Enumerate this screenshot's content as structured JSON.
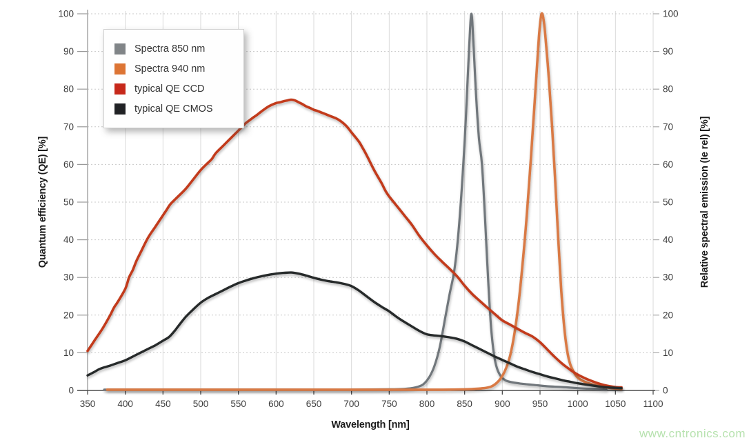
{
  "legend": {
    "items": [
      {
        "label": "Spectra 850 nm",
        "color": "#808487"
      },
      {
        "label": "Spectra 940 nm",
        "color": "#dc7434"
      },
      {
        "label": "typical QE CCD",
        "color": "#c6281a"
      },
      {
        "label": "typical QE CMOS",
        "color": "#202124"
      }
    ]
  },
  "axes": {
    "x_label": "Wavelength [nm]",
    "y_left_label": "Quantum efficiency (QE) [%]",
    "y_right_label": "Relative spectral emission (Ie rel) [%]"
  },
  "watermark": {
    "text": "www.cntronics.com",
    "color": "#b7e2af"
  },
  "chart_data": {
    "type": "line",
    "title": "",
    "xlabel": "Wavelength [nm]",
    "ylabel": "Quantum efficiency (QE) [%]",
    "ylabel_right": "Relative spectral emission (Ie rel) [%]",
    "xlim": [
      350,
      1100
    ],
    "ylim": [
      0,
      100
    ],
    "x_ticks": [
      350,
      400,
      450,
      500,
      550,
      600,
      650,
      700,
      750,
      800,
      850,
      900,
      950,
      1000,
      1050,
      1100
    ],
    "y_ticks": [
      0,
      10,
      20,
      30,
      40,
      50,
      60,
      70,
      80,
      90,
      100
    ],
    "grid": {
      "vertical": "solid",
      "horizontal": "dotted"
    },
    "legend_position": "top-left",
    "series": [
      {
        "name": "Spectra 850 nm",
        "color": "#71777b",
        "width": 3.2,
        "points": [
          [
            372,
            0.2
          ],
          [
            600,
            0.2
          ],
          [
            700,
            0.2
          ],
          [
            750,
            0.3
          ],
          [
            770,
            0.4
          ],
          [
            785,
            0.8
          ],
          [
            795,
            1.6
          ],
          [
            803,
            3.5
          ],
          [
            810,
            6.5
          ],
          [
            817,
            11.5
          ],
          [
            824,
            19
          ],
          [
            830,
            25.5
          ],
          [
            836,
            31.5
          ],
          [
            841,
            40
          ],
          [
            846,
            53
          ],
          [
            850,
            66
          ],
          [
            853,
            78
          ],
          [
            856,
            91
          ],
          [
            859,
            100
          ],
          [
            862,
            91
          ],
          [
            865,
            79
          ],
          [
            869,
            67
          ],
          [
            873,
            60
          ],
          [
            877,
            46
          ],
          [
            881,
            30
          ],
          [
            885,
            17
          ],
          [
            889,
            9.5
          ],
          [
            893,
            5.8
          ],
          [
            898,
            3.8
          ],
          [
            904,
            2.7
          ],
          [
            912,
            2.2
          ],
          [
            925,
            1.8
          ],
          [
            940,
            1.5
          ],
          [
            960,
            1.1
          ],
          [
            980,
            0.9
          ],
          [
            1000,
            0.6
          ],
          [
            1020,
            0.4
          ],
          [
            1038,
            0.2
          ]
        ]
      },
      {
        "name": "Spectra 940 nm",
        "color": "#d97a45",
        "width": 3.6,
        "points": [
          [
            376,
            0.2
          ],
          [
            600,
            0.2
          ],
          [
            750,
            0.2
          ],
          [
            820,
            0.2
          ],
          [
            850,
            0.3
          ],
          [
            870,
            0.5
          ],
          [
            885,
            1
          ],
          [
            895,
            2.5
          ],
          [
            903,
            5
          ],
          [
            910,
            9
          ],
          [
            916,
            15
          ],
          [
            922,
            24
          ],
          [
            928,
            36
          ],
          [
            933,
            48
          ],
          [
            938,
            62
          ],
          [
            942,
            74
          ],
          [
            946,
            86
          ],
          [
            949,
            95
          ],
          [
            952,
            100
          ],
          [
            955,
            98
          ],
          [
            958,
            92
          ],
          [
            962,
            82
          ],
          [
            966,
            70
          ],
          [
            970,
            56
          ],
          [
            974,
            41
          ],
          [
            978,
            27
          ],
          [
            982,
            17
          ],
          [
            986,
            10.5
          ],
          [
            990,
            7
          ],
          [
            995,
            4.8
          ],
          [
            1000,
            3.4
          ],
          [
            1008,
            2.4
          ],
          [
            1016,
            1.8
          ],
          [
            1025,
            1.3
          ],
          [
            1035,
            0.9
          ],
          [
            1045,
            0.6
          ],
          [
            1058,
            0.4
          ]
        ]
      },
      {
        "name": "typical QE CCD",
        "color": "#c23a1b",
        "width": 3.6,
        "points": [
          [
            350,
            10.5
          ],
          [
            360,
            13.5
          ],
          [
            370,
            16.5
          ],
          [
            380,
            20
          ],
          [
            385,
            22
          ],
          [
            390,
            23.5
          ],
          [
            400,
            27
          ],
          [
            405,
            30
          ],
          [
            410,
            32
          ],
          [
            415,
            34.5
          ],
          [
            420,
            36.5
          ],
          [
            430,
            40.5
          ],
          [
            440,
            43.5
          ],
          [
            450,
            46.5
          ],
          [
            455,
            48
          ],
          [
            460,
            49.5
          ],
          [
            470,
            51.5
          ],
          [
            480,
            53.5
          ],
          [
            490,
            56
          ],
          [
            500,
            58.5
          ],
          [
            510,
            60.5
          ],
          [
            515,
            61.5
          ],
          [
            520,
            63
          ],
          [
            530,
            65
          ],
          [
            540,
            67
          ],
          [
            550,
            69
          ],
          [
            555,
            70
          ],
          [
            560,
            71
          ],
          [
            570,
            72.5
          ],
          [
            575,
            73.2
          ],
          [
            580,
            74
          ],
          [
            590,
            75.4
          ],
          [
            600,
            76.3
          ],
          [
            605,
            76.5
          ],
          [
            610,
            76.8
          ],
          [
            615,
            77
          ],
          [
            620,
            77.2
          ],
          [
            625,
            77
          ],
          [
            630,
            76.5
          ],
          [
            635,
            76
          ],
          [
            640,
            75.4
          ],
          [
            645,
            75
          ],
          [
            650,
            74.5
          ],
          [
            655,
            74.2
          ],
          [
            660,
            73.8
          ],
          [
            670,
            73
          ],
          [
            675,
            72.6
          ],
          [
            680,
            72.2
          ],
          [
            685,
            71.6
          ],
          [
            690,
            70.8
          ],
          [
            695,
            69.8
          ],
          [
            700,
            68.5
          ],
          [
            710,
            66
          ],
          [
            715,
            64.3
          ],
          [
            720,
            62.5
          ],
          [
            730,
            58.5
          ],
          [
            740,
            55
          ],
          [
            745,
            53
          ],
          [
            750,
            51.5
          ],
          [
            760,
            49
          ],
          [
            770,
            46.5
          ],
          [
            780,
            44
          ],
          [
            790,
            41
          ],
          [
            800,
            38.5
          ],
          [
            810,
            36.2
          ],
          [
            820,
            34.2
          ],
          [
            830,
            32.3
          ],
          [
            840,
            30.3
          ],
          [
            850,
            27.8
          ],
          [
            860,
            25.6
          ],
          [
            870,
            23.8
          ],
          [
            880,
            22
          ],
          [
            890,
            20.3
          ],
          [
            900,
            18.6
          ],
          [
            910,
            17.5
          ],
          [
            920,
            16.4
          ],
          [
            930,
            15.3
          ],
          [
            940,
            14.3
          ],
          [
            950,
            12.8
          ],
          [
            960,
            10.8
          ],
          [
            970,
            8.8
          ],
          [
            980,
            7
          ],
          [
            990,
            5.5
          ],
          [
            1000,
            4.2
          ],
          [
            1010,
            3.2
          ],
          [
            1020,
            2.4
          ],
          [
            1030,
            1.7
          ],
          [
            1040,
            1.2
          ],
          [
            1050,
            0.9
          ],
          [
            1058,
            0.8
          ]
        ]
      },
      {
        "name": "typical QE CMOS",
        "color": "#28292b",
        "width": 3.4,
        "points": [
          [
            350,
            4
          ],
          [
            358,
            4.8
          ],
          [
            365,
            5.6
          ],
          [
            370,
            6
          ],
          [
            380,
            6.6
          ],
          [
            390,
            7.3
          ],
          [
            400,
            8
          ],
          [
            410,
            9
          ],
          [
            420,
            10
          ],
          [
            430,
            11
          ],
          [
            440,
            12
          ],
          [
            450,
            13.2
          ],
          [
            458,
            14.2
          ],
          [
            465,
            15.7
          ],
          [
            470,
            17
          ],
          [
            480,
            19.5
          ],
          [
            490,
            21.5
          ],
          [
            500,
            23.3
          ],
          [
            510,
            24.6
          ],
          [
            520,
            25.6
          ],
          [
            530,
            26.6
          ],
          [
            540,
            27.6
          ],
          [
            550,
            28.5
          ],
          [
            560,
            29.2
          ],
          [
            570,
            29.8
          ],
          [
            580,
            30.3
          ],
          [
            590,
            30.7
          ],
          [
            600,
            31
          ],
          [
            610,
            31.2
          ],
          [
            620,
            31.3
          ],
          [
            630,
            31
          ],
          [
            640,
            30.5
          ],
          [
            650,
            29.9
          ],
          [
            660,
            29.4
          ],
          [
            670,
            29
          ],
          [
            680,
            28.7
          ],
          [
            690,
            28.3
          ],
          [
            700,
            27.7
          ],
          [
            710,
            26.5
          ],
          [
            720,
            25
          ],
          [
            730,
            23.5
          ],
          [
            740,
            22.2
          ],
          [
            750,
            21
          ],
          [
            760,
            19.5
          ],
          [
            770,
            18.2
          ],
          [
            780,
            17
          ],
          [
            790,
            15.8
          ],
          [
            800,
            14.9
          ],
          [
            810,
            14.6
          ],
          [
            820,
            14.4
          ],
          [
            830,
            14.1
          ],
          [
            840,
            13.7
          ],
          [
            850,
            13
          ],
          [
            860,
            12
          ],
          [
            870,
            11
          ],
          [
            880,
            10
          ],
          [
            890,
            9
          ],
          [
            900,
            8.1
          ],
          [
            910,
            7.2
          ],
          [
            920,
            6.3
          ],
          [
            930,
            5.6
          ],
          [
            940,
            4.9
          ],
          [
            950,
            4.3
          ],
          [
            960,
            3.7
          ],
          [
            970,
            3.2
          ],
          [
            980,
            2.7
          ],
          [
            990,
            2.3
          ],
          [
            1000,
            1.9
          ],
          [
            1010,
            1.6
          ],
          [
            1020,
            1.3
          ],
          [
            1030,
            1
          ],
          [
            1040,
            0.8
          ],
          [
            1050,
            0.7
          ],
          [
            1058,
            0.6
          ]
        ]
      }
    ]
  }
}
